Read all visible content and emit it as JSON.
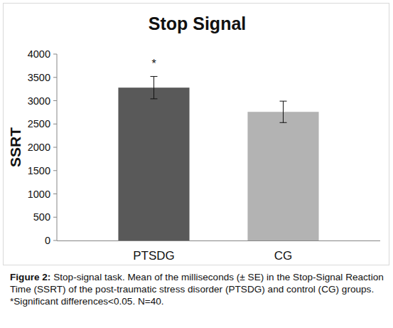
{
  "chart_data": {
    "type": "bar",
    "title": "Stop Signal",
    "y_label": "SSRT",
    "categories": [
      "PTSDG",
      "CG"
    ],
    "values": [
      3280,
      2760
    ],
    "errors": [
      240,
      230
    ],
    "colors": [
      "#595959",
      "#b3b3b3"
    ],
    "ylim": [
      0,
      4000
    ],
    "yticks": [
      0,
      500,
      1000,
      1500,
      2000,
      2500,
      3000,
      3500,
      4000
    ],
    "grid": false,
    "annotations": [
      {
        "text": "*",
        "category": "PTSDG"
      }
    ],
    "caption_label": "Figure 2:",
    "caption": "Stop-signal task. Mean of the milliseconds (± SE) in the Stop-Signal Reaction Time (SSRT) of the post-traumatic stress disorder (PTSDG) and control (CG) groups. *Significant differences<0.05. N=40."
  }
}
